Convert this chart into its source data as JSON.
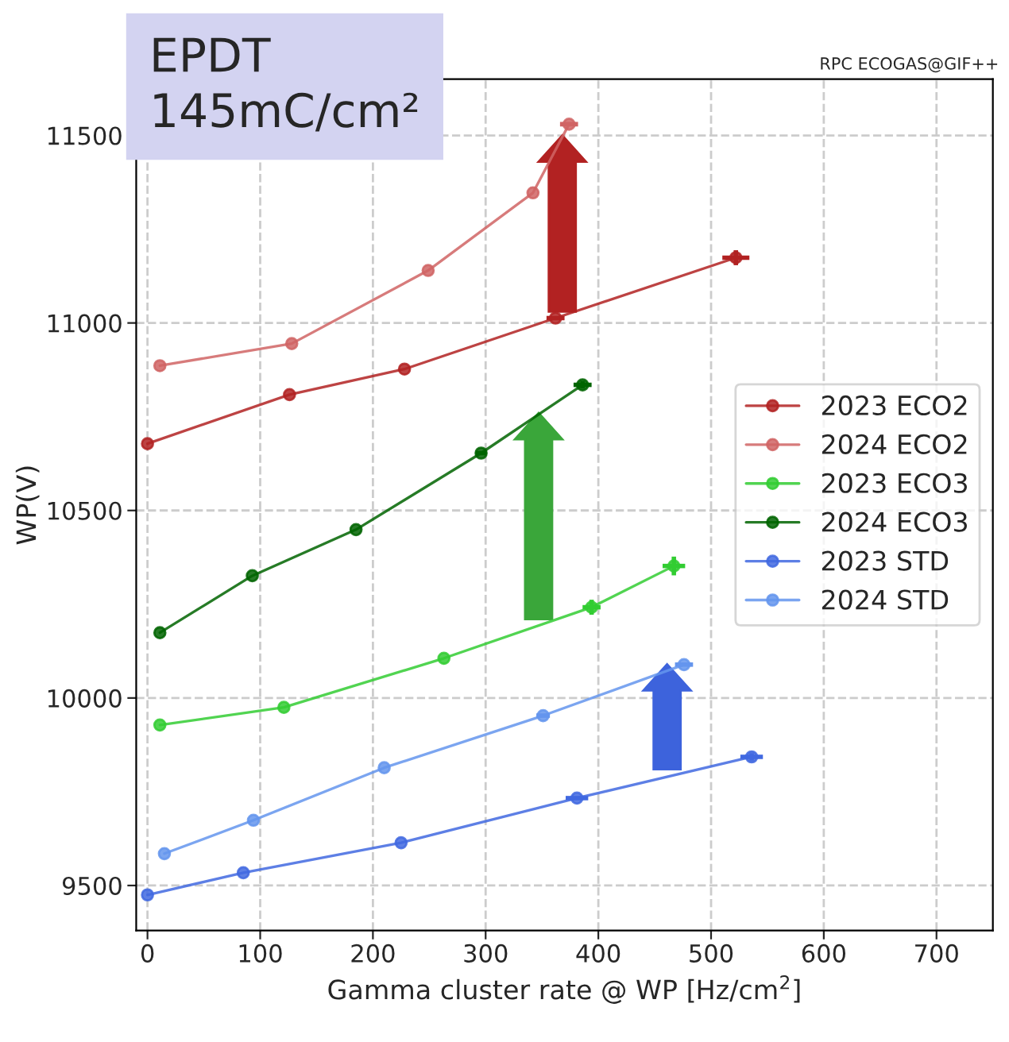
{
  "chart_data": {
    "type": "line",
    "xlabel": "Gamma cluster rate @ WP [Hz/cm$^{2}$]",
    "ylabel": "WP(V)",
    "annotations": [
      "EPDT\n145mC/cm²",
      "RPC ECOGAS@GIF++"
    ],
    "xlim": [
      -10,
      750
    ],
    "xticks": [
      0,
      100,
      200,
      300,
      400,
      500,
      600,
      700
    ],
    "ylim": [
      9380,
      11650
    ],
    "yticks": [
      9500,
      10000,
      10500,
      11000,
      11500
    ],
    "grid": true,
    "legend": "center right",
    "marker": "circle",
    "line_style": "solid",
    "series": [
      {
        "name": "2023 ECO2",
        "color": "#b22222",
        "x": [
          0,
          126,
          228,
          362,
          522
        ],
        "values": [
          10678,
          10809,
          10877,
          11013,
          11174
        ],
        "errors": [
          null,
          null,
          null,
          null,
          20
        ],
        "xerrors": [
          null,
          null,
          null,
          8,
          12
        ]
      },
      {
        "name": "2024 ECO2",
        "color": "#d06464",
        "x": [
          11,
          128,
          249,
          342,
          374
        ],
        "values": [
          10886,
          10945,
          11140,
          11347,
          11530
        ],
        "errors": [
          null,
          null,
          null,
          null,
          null
        ],
        "xerrors": [
          null,
          null,
          null,
          null,
          8
        ]
      },
      {
        "name": "2023 ECO3",
        "color": "#32cd32",
        "x": [
          11,
          121,
          263,
          394,
          467
        ],
        "values": [
          9928,
          9975,
          10106,
          10242,
          10352
        ],
        "errors": [
          null,
          null,
          null,
          20,
          25
        ],
        "xerrors": [
          null,
          null,
          null,
          8,
          10
        ]
      },
      {
        "name": "2024 ECO3",
        "color": "#006400",
        "x": [
          11,
          93,
          185,
          296,
          386
        ],
        "values": [
          10174,
          10326,
          10449,
          10653,
          10835
        ],
        "errors": [
          null,
          null,
          null,
          null,
          10
        ],
        "xerrors": [
          null,
          null,
          null,
          5,
          8
        ]
      },
      {
        "name": "2023 STD",
        "color": "#4169e1",
        "x": [
          0,
          85,
          225,
          381,
          536
        ],
        "values": [
          9475,
          9534,
          9614,
          9733,
          9843
        ],
        "errors": [
          null,
          null,
          null,
          null,
          10
        ],
        "xerrors": [
          null,
          null,
          null,
          10,
          10
        ]
      },
      {
        "name": "2024 STD",
        "color": "#6495ed",
        "x": [
          15,
          94,
          210,
          351,
          476
        ],
        "values": [
          9585,
          9674,
          9814,
          9953,
          10089
        ],
        "errors": [
          null,
          null,
          null,
          null,
          null
        ],
        "xerrors": [
          null,
          null,
          null,
          6,
          8
        ]
      }
    ]
  }
}
